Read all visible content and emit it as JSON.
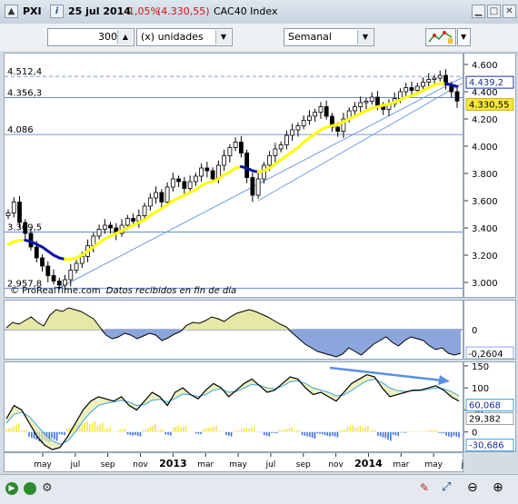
{
  "header": {
    "symbol": "PXI",
    "date": "25 jul 2014",
    "change": "-1,05%",
    "price": "(4.330,55)",
    "name": "CAC40 Index"
  },
  "toolbar": {
    "units_value": "300",
    "units_label": "(x) unidades",
    "period": "Semanal"
  },
  "colors": {
    "background": "#ffffff",
    "candle": "#000000",
    "ma_up": "#ffff00",
    "ma_down": "#0a14a0",
    "trend": "#6f9be6",
    "osc_fill": "#e6e8a6",
    "osc_neg": "#8aa6dd",
    "last_price": "#f7e83a",
    "hist_pos": "#f2e64a",
    "hist_neg": "#3f6fe0"
  },
  "chart_data": [
    {
      "type": "candlestick",
      "title": "",
      "ylim": [
        2880,
        4680
      ],
      "price_labels": [
        {
          "label": "4.512,4",
          "value": 4512.4
        },
        {
          "label": "4.356,3",
          "value": 4356.3
        },
        {
          "label": "4.086",
          "value": 4086
        },
        {
          "label": "3.369,5",
          "value": 3369.5
        },
        {
          "label": "2.957,8",
          "value": 2957.8
        }
      ],
      "y_ticks": [
        {
          "label": "4.600",
          "value": 4600
        },
        {
          "label": "4.400",
          "value": 4400
        },
        {
          "label": "4.200",
          "value": 4200
        },
        {
          "label": "4.000",
          "value": 4000
        },
        {
          "label": "3.800",
          "value": 3800
        },
        {
          "label": "3.600",
          "value": 3600
        },
        {
          "label": "3.400",
          "value": 3400
        },
        {
          "label": "3.200",
          "value": 3200
        },
        {
          "label": "3.000",
          "value": 3000
        }
      ],
      "last_values": [
        {
          "label": "4.439,2",
          "value": 4439.2
        },
        {
          "label": "4.330,55",
          "value": 4330.55
        }
      ],
      "footer": "© ProRealTime.com",
      "footer_note": "Datos recibidos en fin de día",
      "closes": [
        3510,
        3590,
        3440,
        3360,
        3260,
        3180,
        3120,
        3050,
        3010,
        2980,
        3020,
        3090,
        3140,
        3190,
        3270,
        3340,
        3390,
        3420,
        3400,
        3360,
        3420,
        3470,
        3450,
        3490,
        3560,
        3620,
        3660,
        3590,
        3700,
        3760,
        3740,
        3690,
        3740,
        3780,
        3840,
        3820,
        3760,
        3860,
        3930,
        3990,
        4030,
        3950,
        3770,
        3640,
        3760,
        3860,
        3930,
        3980,
        4010,
        4080,
        4120,
        4150,
        4190,
        4220,
        4250,
        4290,
        4220,
        4140,
        4110,
        4200,
        4260,
        4290,
        4320,
        4330,
        4360,
        4300,
        4270,
        4310,
        4350,
        4400,
        4430,
        4410,
        4440,
        4470,
        4490,
        4500,
        4520,
        4450,
        4400,
        4331
      ],
      "ma": [
        3280,
        3300,
        3310,
        3310,
        3300,
        3280,
        3260,
        3230,
        3200,
        3180,
        3170,
        3170,
        3180,
        3200,
        3230,
        3260,
        3290,
        3320,
        3340,
        3360,
        3380,
        3400,
        3420,
        3440,
        3460,
        3490,
        3520,
        3540,
        3570,
        3600,
        3620,
        3640,
        3660,
        3680,
        3710,
        3730,
        3740,
        3760,
        3790,
        3810,
        3840,
        3850,
        3840,
        3820,
        3810,
        3820,
        3840,
        3870,
        3900,
        3930,
        3960,
        3990,
        4030,
        4060,
        4090,
        4120,
        4140,
        4150,
        4160,
        4180,
        4200,
        4220,
        4240,
        4260,
        4280,
        4290,
        4300,
        4310,
        4320,
        4340,
        4360,
        4370,
        4390,
        4410,
        4430,
        4450,
        4460,
        4460,
        4450,
        4439
      ]
    },
    {
      "type": "area",
      "ylim": [
        -0.34,
        0.32
      ],
      "y_ticks": [
        {
          "label": "0",
          "value": 0
        },
        {
          "label": "-0,2604",
          "value": -0.2604
        }
      ],
      "values": [
        0.02,
        0.08,
        0.06,
        0.1,
        0.14,
        0.08,
        0.04,
        0.16,
        0.22,
        0.2,
        0.24,
        0.22,
        0.2,
        0.16,
        0.12,
        0.03,
        -0.06,
        -0.1,
        -0.08,
        -0.04,
        -0.06,
        -0.1,
        -0.07,
        -0.04,
        -0.06,
        -0.12,
        -0.09,
        -0.05,
        -0.02,
        0.05,
        0.08,
        0.07,
        0.1,
        0.14,
        0.12,
        0.09,
        0.14,
        0.18,
        0.2,
        0.22,
        0.2,
        0.17,
        0.14,
        0.1,
        0.06,
        0.03,
        -0.04,
        -0.1,
        -0.16,
        -0.2,
        -0.24,
        -0.26,
        -0.28,
        -0.3,
        -0.27,
        -0.2,
        -0.24,
        -0.28,
        -0.22,
        -0.16,
        -0.12,
        -0.08,
        -0.14,
        -0.18,
        -0.12,
        -0.08,
        -0.1,
        -0.12,
        -0.18,
        -0.22,
        -0.2,
        -0.26,
        -0.28,
        -0.26
      ]
    },
    {
      "type": "line",
      "ylim": [
        -48,
        158
      ],
      "y_ticks": [
        {
          "label": "150",
          "value": 150
        },
        {
          "label": "100",
          "value": 100
        },
        {
          "label": "50",
          "value": 50
        },
        {
          "label": "0",
          "value": 0
        }
      ],
      "last_values": [
        {
          "label": "60,068",
          "value": 60.068
        },
        {
          "label": "29,382",
          "value": 29.382
        },
        {
          "label": "-30,686",
          "value": -30.686
        }
      ],
      "line1": [
        30,
        60,
        50,
        20,
        -10,
        -30,
        -40,
        -35,
        -10,
        20,
        50,
        70,
        80,
        75,
        70,
        80,
        60,
        50,
        70,
        90,
        80,
        60,
        90,
        100,
        85,
        75,
        95,
        110,
        100,
        80,
        95,
        110,
        120,
        105,
        90,
        95,
        110,
        125,
        120,
        100,
        85,
        90,
        80,
        70,
        90,
        110,
        120,
        130,
        125,
        100,
        80,
        85,
        90,
        95,
        95,
        100,
        105,
        95,
        80,
        70
      ],
      "line2": [
        20,
        40,
        45,
        35,
        15,
        -5,
        -20,
        -28,
        -20,
        0,
        25,
        45,
        60,
        65,
        68,
        72,
        68,
        60,
        62,
        72,
        74,
        68,
        76,
        86,
        84,
        80,
        85,
        95,
        98,
        90,
        92,
        100,
        108,
        106,
        100,
        98,
        104,
        114,
        116,
        110,
        100,
        95,
        90,
        82,
        84,
        94,
        106,
        116,
        120,
        112,
        100,
        94,
        92,
        93,
        94,
        97,
        100,
        98,
        92,
        82
      ],
      "hist": [
        10,
        20,
        5,
        -15,
        -25,
        -25,
        -20,
        -7,
        10,
        20,
        25,
        25,
        20,
        10,
        2,
        8,
        -8,
        -10,
        8,
        18,
        6,
        -8,
        14,
        14,
        1,
        -5,
        10,
        15,
        2,
        -10,
        3,
        10,
        12,
        -1,
        -10,
        -3,
        6,
        11,
        4,
        -10,
        -15,
        -5,
        -10,
        -12,
        6,
        16,
        14,
        14,
        5,
        -12,
        -20,
        -9,
        -2,
        2,
        1,
        3,
        5,
        -3,
        -12,
        -12
      ],
      "annotation": "falling arrow"
    }
  ],
  "xaxis": {
    "labels": [
      "may",
      "jul",
      "sep",
      "nov",
      "2013",
      "mar",
      "may",
      "jul",
      "sep",
      "nov",
      "2014",
      "mar",
      "may",
      "jul"
    ],
    "bold": [
      "2013",
      "2014"
    ]
  },
  "bottom": {
    "tools": [
      "zoom-out-icon",
      "zoom-fit-icon",
      "zoom-in-icon"
    ]
  }
}
